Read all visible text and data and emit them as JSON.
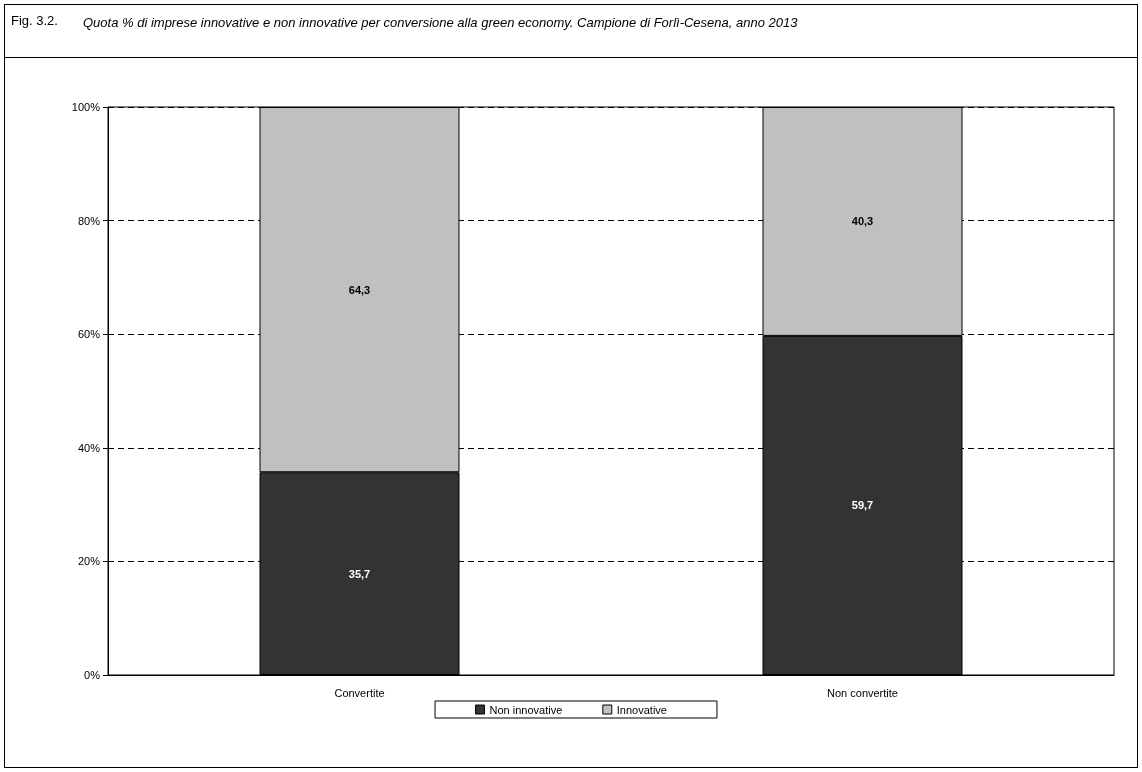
{
  "chart_data": {
    "type": "bar",
    "title": "Fig. 3.2.",
    "subtitle": "Quota % di imprese innovative e non innovative per conversione alla green economy. Campione di Forlì-Cesena, anno 2013",
    "categories": [
      "Convertite",
      "Non convertite"
    ],
    "series": [
      {
        "name": "Non innovative",
        "color": "#333333",
        "values": [
          35.7,
          59.7
        ],
        "value_labels": [
          "35,7",
          "59,7"
        ]
      },
      {
        "name": "Innovative",
        "color": "#c0c0c0",
        "values": [
          64.3,
          40.3
        ],
        "value_labels": [
          "64,3",
          "40,3"
        ]
      }
    ],
    "stacked": true,
    "ylim": [
      0,
      100
    ],
    "yticks": [
      {
        "value": 0,
        "label": "0%"
      },
      {
        "value": 20,
        "label": "20%"
      },
      {
        "value": 40,
        "label": "40%"
      },
      {
        "value": 60,
        "label": "60%"
      },
      {
        "value": 80,
        "label": "80%"
      },
      {
        "value": 100,
        "label": "100%"
      }
    ],
    "grid": "y",
    "legend": "bottom"
  }
}
